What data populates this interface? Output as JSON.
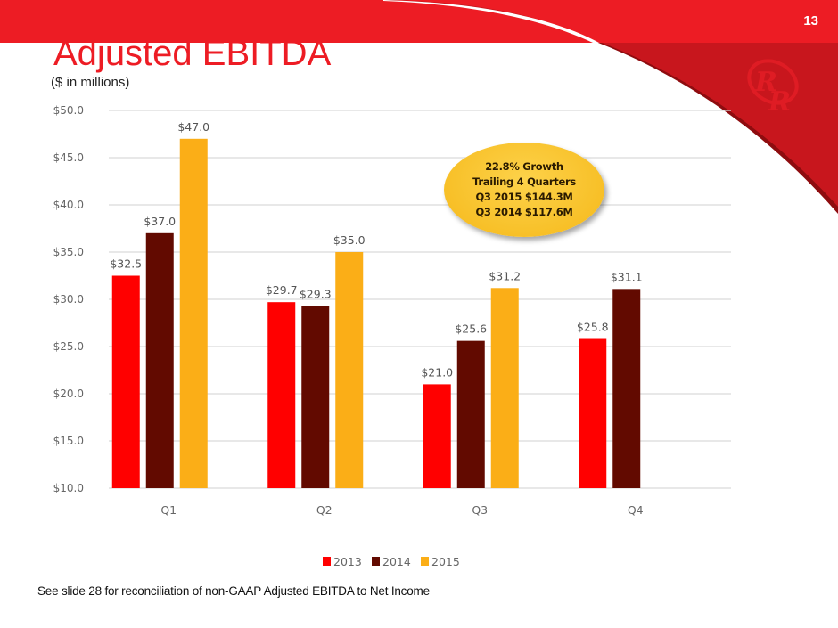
{
  "slide": {
    "number": "13",
    "title": "Adjusted EBITDA",
    "subtitle": "($ in millions)",
    "footnote": "See slide 28 for reconciliation of non-GAAP Adjusted EBITDA to Net Income",
    "logo_icon": "rr-logo-icon",
    "colors": {
      "brand_red": "#ed1c24",
      "banner_dark_red": "#c8161d"
    }
  },
  "callout": {
    "lines": [
      "22.8% Growth",
      "Trailing 4 Quarters",
      "Q3 2015 $144.3M",
      "Q3 2014 $117.6M"
    ],
    "color": "#f8c22e"
  },
  "chart_data": {
    "type": "bar",
    "title": "Adjusted EBITDA",
    "subtitle": "($ in millions)",
    "xlabel": "",
    "ylabel": "",
    "categories": [
      "Q1",
      "Q2",
      "Q3",
      "Q4"
    ],
    "series": [
      {
        "name": "2013",
        "color": "#ff0000",
        "values": [
          32.5,
          29.7,
          21.0,
          25.8
        ],
        "labels": [
          "$32.5",
          "$29.7",
          "$21.0",
          "$25.8"
        ]
      },
      {
        "name": "2014",
        "color": "#620a00",
        "values": [
          37.0,
          29.3,
          25.6,
          31.1
        ],
        "labels": [
          "$37.0",
          "$29.3",
          "$25.6",
          "$31.1"
        ]
      },
      {
        "name": "2015",
        "color": "#fbae17",
        "values": [
          47.0,
          35.0,
          31.2,
          null
        ],
        "labels": [
          "$47.0",
          "$35.0",
          "$31.2",
          ""
        ]
      }
    ],
    "ylim": [
      10,
      50
    ],
    "yticks": [
      10,
      15,
      20,
      25,
      30,
      35,
      40,
      45,
      50
    ],
    "ytick_labels": [
      "$10.0",
      "$15.0",
      "$20.0",
      "$25.0",
      "$30.0",
      "$35.0",
      "$40.0",
      "$45.0",
      "$50.0"
    ],
    "grid": true,
    "legend": "bottom-center"
  }
}
